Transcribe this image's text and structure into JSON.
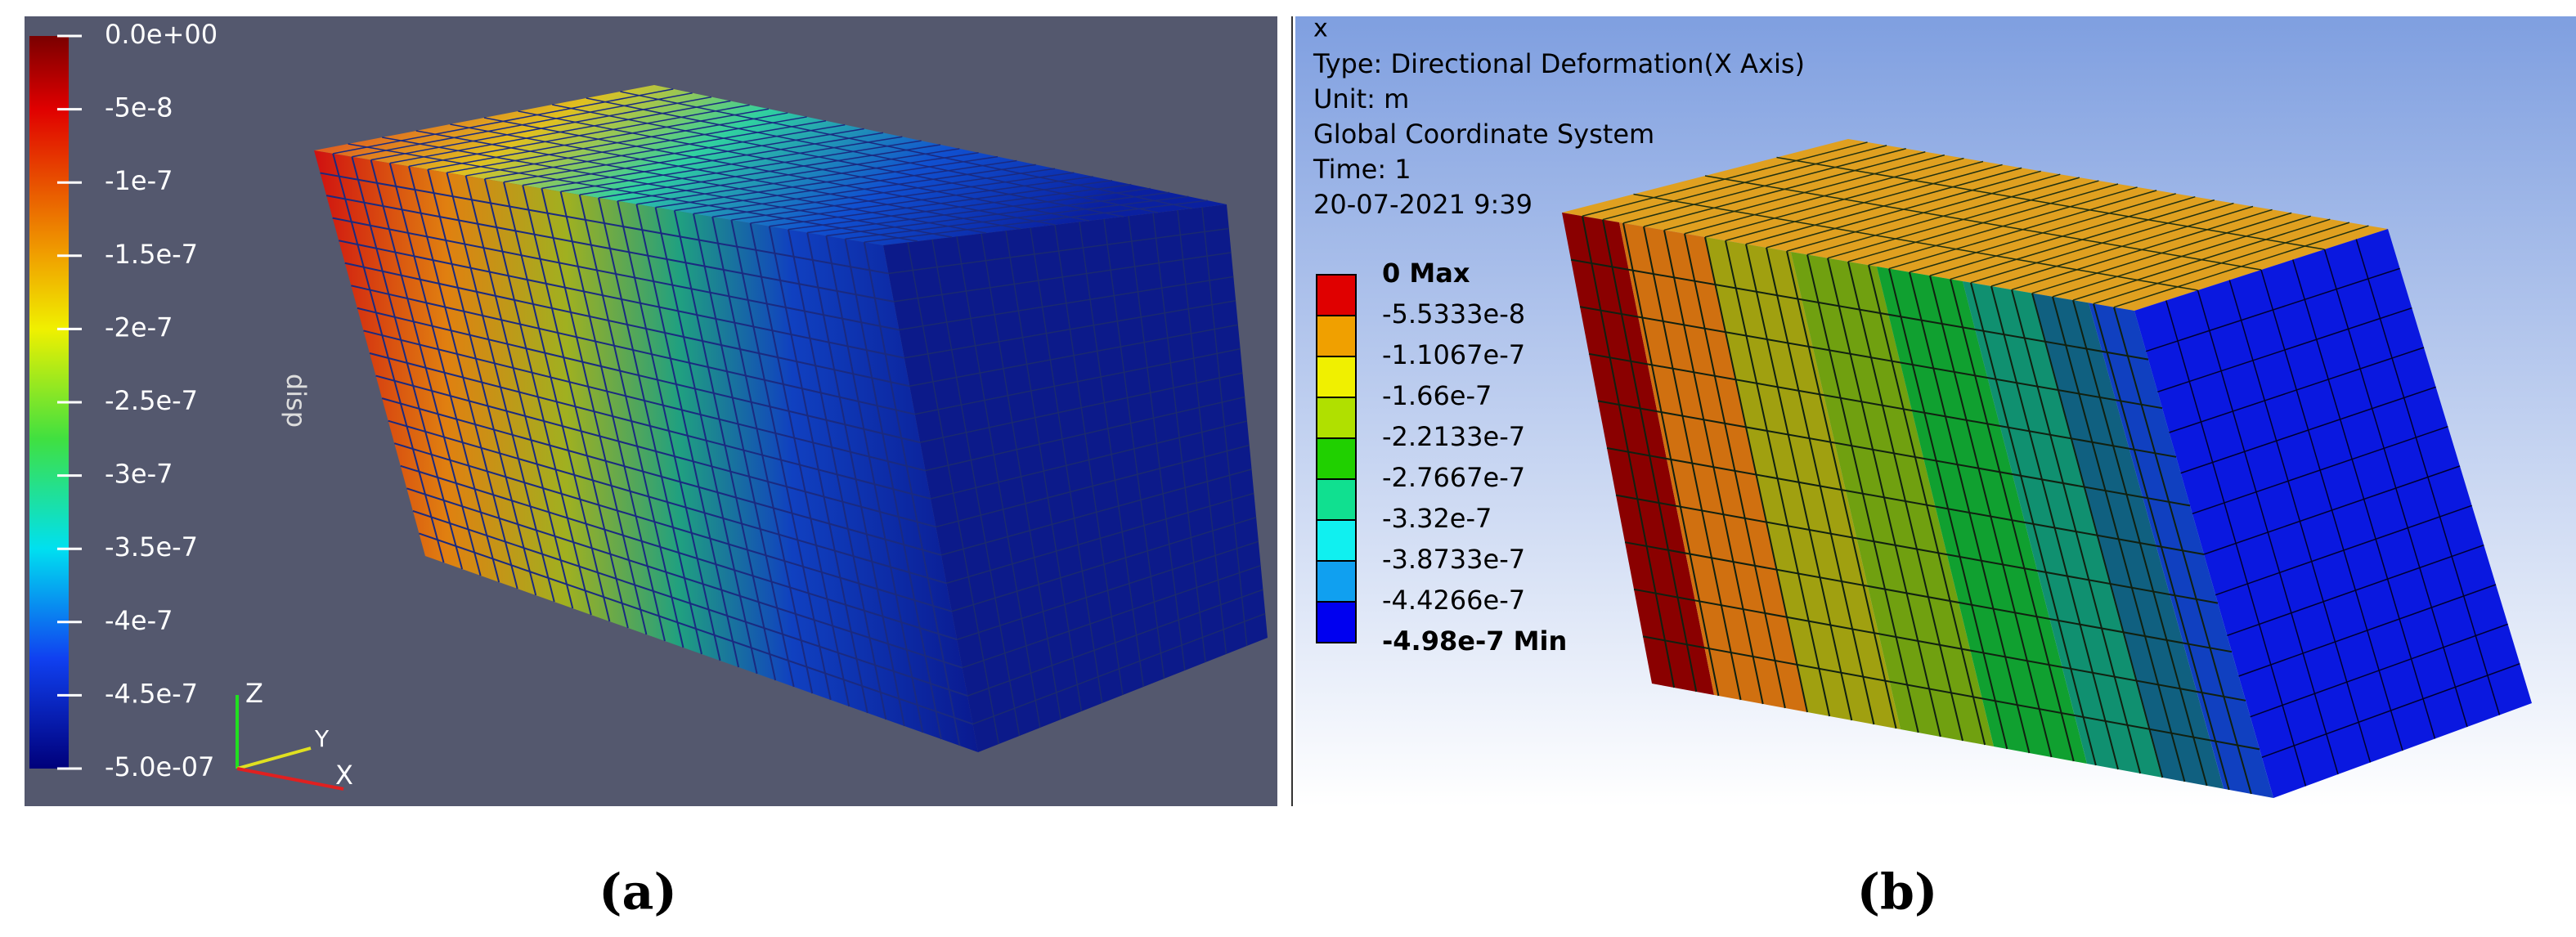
{
  "panel_a": {
    "colorbar": {
      "labels": [
        "0.0e+00",
        "-5e-8",
        "-1e-7",
        "-1.5e-7",
        "-2e-7",
        "-2.5e-7",
        "-3e-7",
        "-3.5e-7",
        "-4e-7",
        "-4.5e-7",
        "-5.0e-07"
      ],
      "title": "disp"
    },
    "axes": {
      "z": "Z",
      "y": "Y",
      "x": "X"
    },
    "caption": "(a)"
  },
  "panel_b": {
    "close": "x",
    "info": [
      "Type: Directional Deformation(X Axis)",
      "Unit: m",
      "Global Coordinate System",
      "Time: 1",
      "20-07-2021 9:39"
    ],
    "legend": {
      "labels": [
        "0 Max",
        "-5.5333e-8",
        "-1.1067e-7",
        "-1.66e-7",
        "-2.2133e-7",
        "-2.7667e-7",
        "-3.32e-7",
        "-3.8733e-7",
        "-4.4266e-7",
        "-4.98e-7 Min"
      ],
      "colors": [
        "#e00000",
        "#f0a000",
        "#f0f000",
        "#b0e000",
        "#20d000",
        "#10e090",
        "#10f0f0",
        "#10a0f0",
        "#0000f0"
      ]
    },
    "caption": "(b)"
  }
}
